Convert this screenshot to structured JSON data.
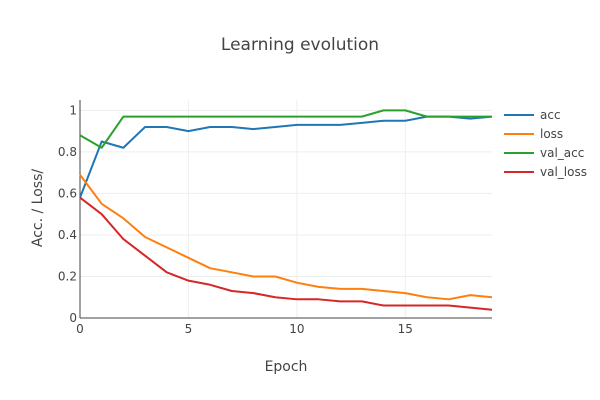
{
  "chart_data": {
    "type": "line",
    "title": "Learning evolution",
    "xlabel": "Epoch",
    "ylabel": "Acc. / Loss/",
    "xlim": [
      0,
      19
    ],
    "ylim": [
      0,
      1.05
    ],
    "x_ticks": [
      0,
      5,
      10,
      15
    ],
    "y_ticks": [
      0,
      0.2,
      0.4,
      0.6,
      0.8,
      1
    ],
    "y_tick_labels": [
      "0",
      "0.2",
      "0.4",
      "0.6",
      "0.8",
      "1"
    ],
    "grid": true,
    "legend_position": "top-right",
    "x": [
      0,
      1,
      2,
      3,
      4,
      5,
      6,
      7,
      8,
      9,
      10,
      11,
      12,
      13,
      14,
      15,
      16,
      17,
      18,
      19
    ],
    "series": [
      {
        "name": "acc",
        "color": "#1f77b4",
        "values": [
          0.58,
          0.85,
          0.82,
          0.92,
          0.92,
          0.9,
          0.92,
          0.92,
          0.91,
          0.92,
          0.93,
          0.93,
          0.93,
          0.94,
          0.95,
          0.95,
          0.97,
          0.97,
          0.96,
          0.97
        ]
      },
      {
        "name": "loss",
        "color": "#ff7f0e",
        "values": [
          0.69,
          0.55,
          0.48,
          0.39,
          0.34,
          0.29,
          0.24,
          0.22,
          0.2,
          0.2,
          0.17,
          0.15,
          0.14,
          0.14,
          0.13,
          0.12,
          0.1,
          0.09,
          0.11,
          0.1
        ]
      },
      {
        "name": "val_acc",
        "color": "#2ca02c",
        "values": [
          0.88,
          0.82,
          0.97,
          0.97,
          0.97,
          0.97,
          0.97,
          0.97,
          0.97,
          0.97,
          0.97,
          0.97,
          0.97,
          0.97,
          1.0,
          1.0,
          0.97,
          0.97,
          0.97,
          0.97
        ]
      },
      {
        "name": "val_loss",
        "color": "#d62728",
        "values": [
          0.58,
          0.5,
          0.38,
          0.3,
          0.22,
          0.18,
          0.16,
          0.13,
          0.12,
          0.1,
          0.09,
          0.09,
          0.08,
          0.08,
          0.06,
          0.06,
          0.06,
          0.06,
          0.05,
          0.04
        ]
      }
    ]
  }
}
